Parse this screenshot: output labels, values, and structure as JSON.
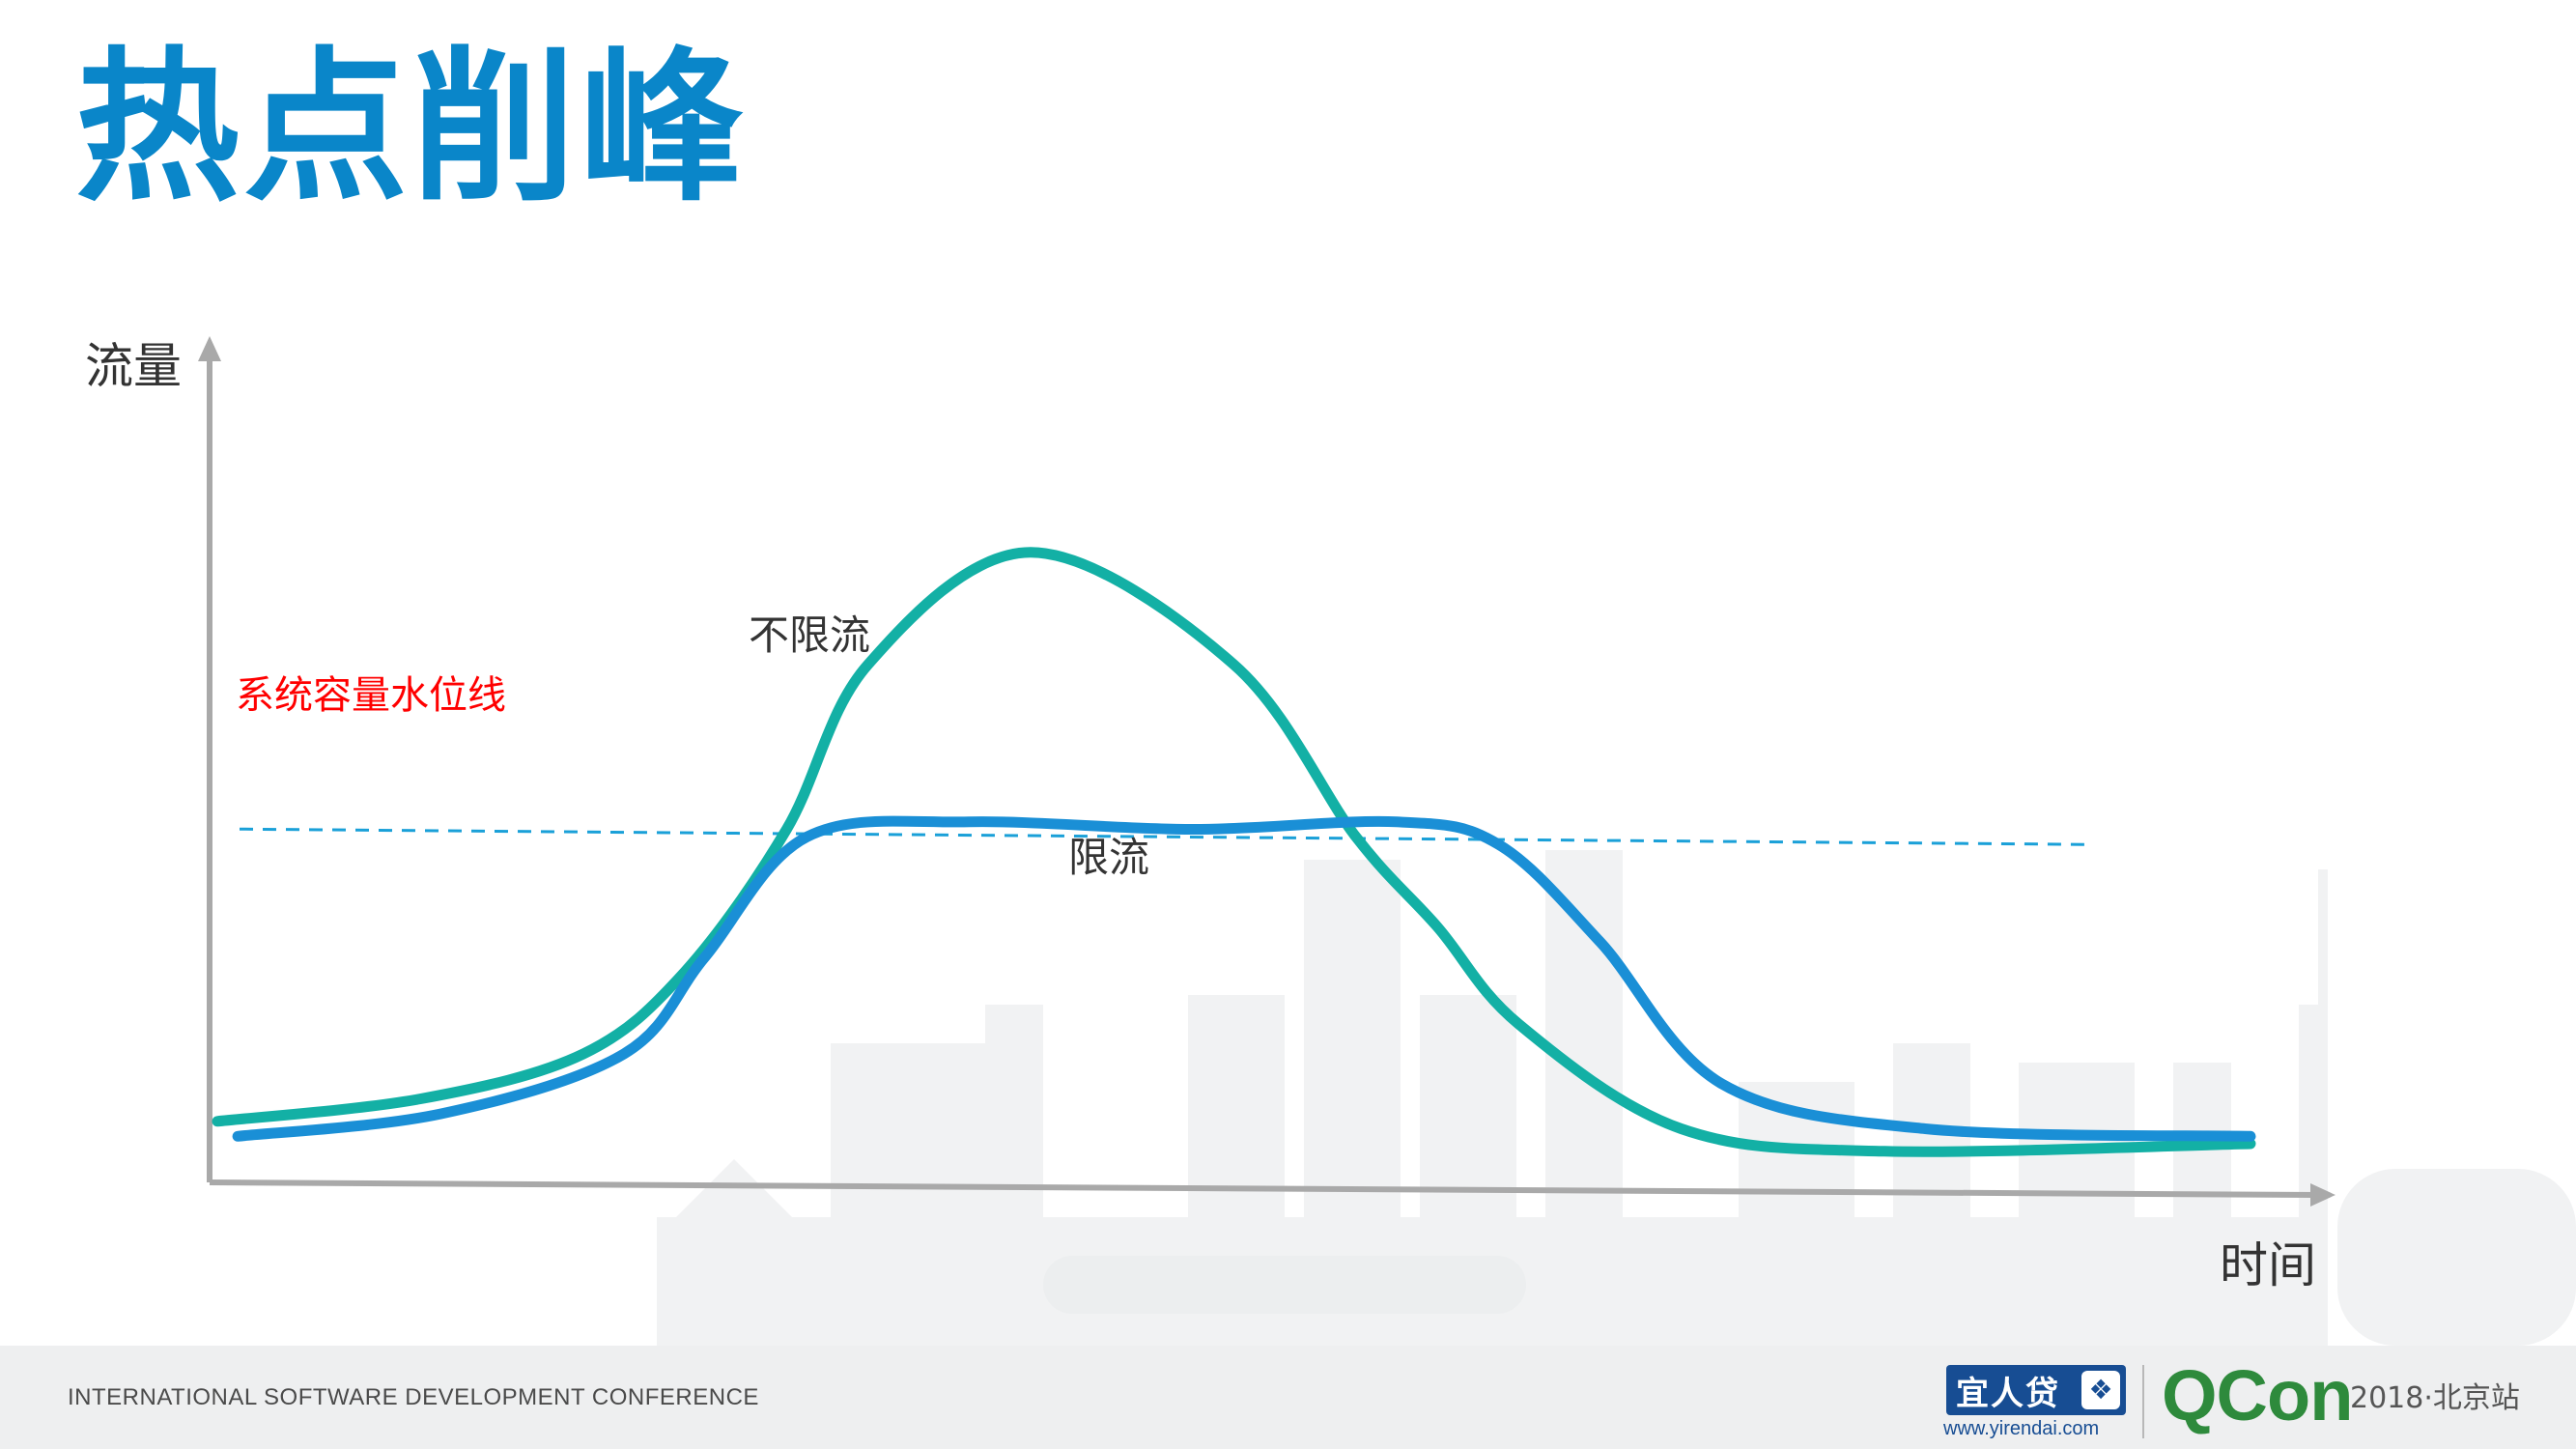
{
  "slide": {
    "title": "热点削峰"
  },
  "chart_data": {
    "type": "line",
    "ylabel": "流量",
    "xlabel": "时间",
    "threshold": {
      "label": "系统容量水位线",
      "value": 45,
      "color": "#ff0000",
      "line_color": "#1aa0d8",
      "style": "dashed"
    },
    "xlim": [
      0,
      100
    ],
    "ylim": [
      0,
      100
    ],
    "series": [
      {
        "name": "不限流",
        "color": "#13b0a5",
        "points": [
          [
            0,
            7
          ],
          [
            10,
            10
          ],
          [
            18,
            16
          ],
          [
            23,
            27
          ],
          [
            28,
            46
          ],
          [
            32,
            68
          ],
          [
            40,
            83
          ],
          [
            50,
            68
          ],
          [
            56,
            45
          ],
          [
            60,
            33
          ],
          [
            64,
            20
          ],
          [
            72,
            6
          ],
          [
            82,
            3
          ],
          [
            100,
            4
          ]
        ]
      },
      {
        "name": "限流",
        "color": "#1a8fd6",
        "points": [
          [
            1,
            5
          ],
          [
            11,
            8
          ],
          [
            20,
            16
          ],
          [
            24,
            29
          ],
          [
            29,
            45
          ],
          [
            37,
            47
          ],
          [
            48,
            46
          ],
          [
            58,
            47
          ],
          [
            63,
            44
          ],
          [
            68,
            31
          ],
          [
            74,
            12
          ],
          [
            84,
            6
          ],
          [
            100,
            5
          ]
        ]
      }
    ],
    "label_positions": {
      "series_0": "upper-left of peak",
      "series_1": "below plateau"
    }
  },
  "footer": {
    "conference": "INTERNATIONAL SOFTWARE DEVELOPMENT CONFERENCE",
    "sponsor_name": "宜人贷",
    "sponsor_url": "www.yirendai.com",
    "brand": "QCon",
    "event": "2018·北京站"
  }
}
